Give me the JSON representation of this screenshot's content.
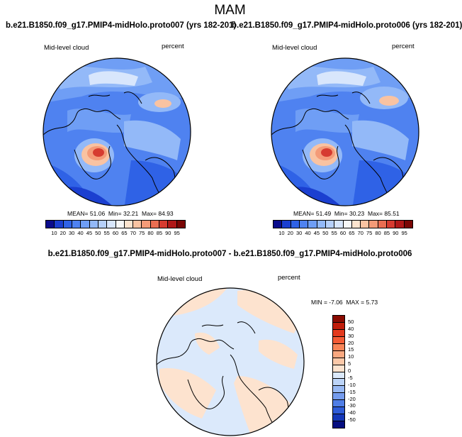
{
  "title": "MAM",
  "panels": [
    {
      "case_title": "b.e21.B1850.f09_g17.PMIP4-midHolo.proto007 (yrs 182-201)",
      "var_label": "Mid-level cloud",
      "units": "percent",
      "mean_label": "MEAN=",
      "mean": "51.06",
      "min_label": "Min=",
      "min": "32.21",
      "max_label": "Max=",
      "max": "84.93"
    },
    {
      "case_title": "b.e21.B1850.f09_g17.PMIP4-midHolo.proto006 (yrs 182-201)",
      "var_label": "Mid-level cloud",
      "units": "percent",
      "mean_label": "MEAN=",
      "mean": "51.49",
      "min_label": "Min=",
      "min": "30.23",
      "max_label": "Max=",
      "max": "85.51"
    }
  ],
  "diff_panel": {
    "case_title": "b.e21.B1850.f09_g17.PMIP4-midHolo.proto007 - b.e21.B1850.f09_g17.PMIP4-midHolo.proto006",
    "var_label": "Mid-level cloud",
    "units": "percent",
    "min_label": "MIN =",
    "min": "-7.06",
    "max_label": "MAX =",
    "max": "5.73"
  },
  "abs_colorbar": {
    "ticks": [
      "10",
      "20",
      "30",
      "40",
      "45",
      "50",
      "55",
      "60",
      "65",
      "70",
      "75",
      "80",
      "85",
      "90",
      "95"
    ],
    "colors": [
      "#0a0c8c",
      "#1b3fd0",
      "#2f62e6",
      "#4f82f0",
      "#6f9ef5",
      "#93b9f8",
      "#b6d0fa",
      "#d8e6fc",
      "#f7f7f7",
      "#fde4cf",
      "#f9c3a2",
      "#f49b78",
      "#ea6e52",
      "#d63b30",
      "#b01818",
      "#7a0604"
    ]
  },
  "diff_colorbar": {
    "ticks": [
      "50",
      "40",
      "30",
      "20",
      "15",
      "10",
      "5",
      "0",
      "-5",
      "-10",
      "-15",
      "-20",
      "-30",
      "-40",
      "-50"
    ],
    "colors": [
      "#8a0a00",
      "#c01c0a",
      "#e33a1e",
      "#f45b35",
      "#f88457",
      "#f9a880",
      "#fbc8a8",
      "#fde3cf",
      "#dbe9fb",
      "#bcd4f8",
      "#98b9f4",
      "#759cee",
      "#507ee6",
      "#2f5cd8",
      "#1437b8",
      "#060e80"
    ]
  }
}
